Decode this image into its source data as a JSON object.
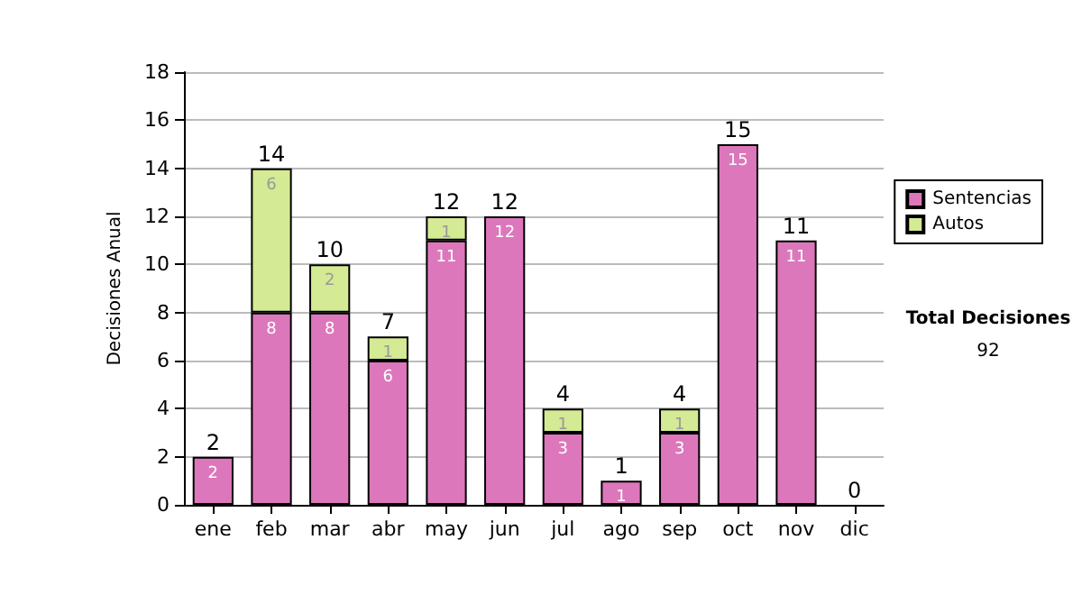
{
  "chart_data": {
    "type": "bar",
    "stacked": true,
    "ylabel": "Decisiones Anual",
    "categories": [
      "ene",
      "feb",
      "mar",
      "abr",
      "may",
      "jun",
      "jul",
      "ago",
      "sep",
      "oct",
      "nov",
      "dic"
    ],
    "series": [
      {
        "name": "Sentencias",
        "color": "#dd77bb",
        "values": [
          2,
          8,
          8,
          6,
          11,
          12,
          3,
          1,
          3,
          15,
          11,
          0
        ],
        "value_labels": [
          "2",
          "8",
          "8",
          "6",
          "11",
          "12",
          "3",
          "1",
          "3",
          "15",
          "11",
          null
        ]
      },
      {
        "name": "Autos",
        "color": "#d4ea94",
        "values": [
          0,
          6,
          2,
          1,
          1,
          0,
          1,
          0,
          1,
          0,
          0,
          0
        ],
        "value_labels": [
          null,
          "6",
          "2",
          "1",
          "1",
          null,
          "1",
          null,
          "1",
          null,
          null,
          null
        ]
      }
    ],
    "totals": [
      "2",
      "14",
      "10",
      "7",
      "12",
      "12",
      "4",
      "1",
      "4",
      "15",
      "11",
      "0"
    ],
    "ylim": [
      0,
      18
    ],
    "yticks": [
      0,
      2,
      4,
      6,
      8,
      10,
      12,
      14,
      16,
      18
    ],
    "grid": "y",
    "legend": "right",
    "annotations": [
      "Total Decisiones",
      "92"
    ]
  }
}
